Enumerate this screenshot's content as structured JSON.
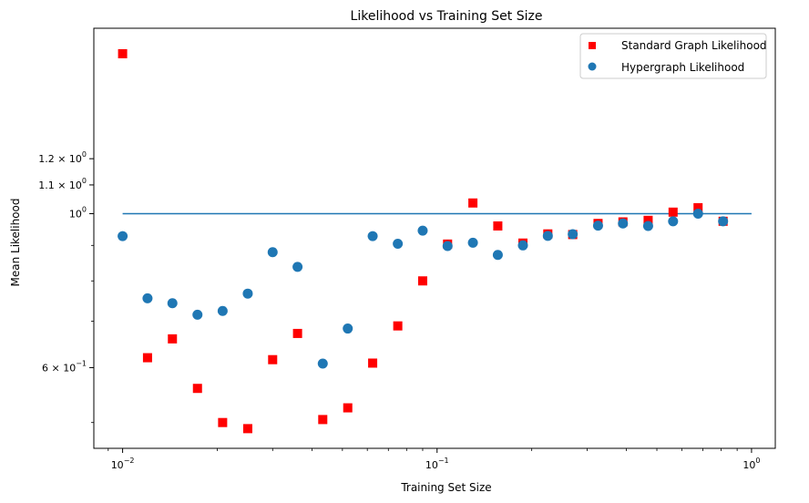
{
  "chart_data": {
    "type": "scatter",
    "title": "Likelihood vs Training Set Size",
    "xlabel": "Training Set Size",
    "ylabel": "Mean Likelihood",
    "xscale": "log",
    "yscale": "log",
    "xlim": [
      0.0081,
      1.19
    ],
    "ylim": [
      0.459,
      1.85
    ],
    "x_ticks": [
      {
        "value": 0.01,
        "base": "10",
        "exp": "−2"
      },
      {
        "value": 0.1,
        "base": "10",
        "exp": "−1"
      },
      {
        "value": 1.0,
        "base": "10",
        "exp": "0"
      }
    ],
    "y_ticks": [
      {
        "value": 0.6,
        "mant": "6",
        "base": "10",
        "exp": "−1"
      },
      {
        "value": 1.0,
        "mant": "",
        "base": "10",
        "exp": "0"
      },
      {
        "value": 1.1,
        "mant": "1.1",
        "base": "10",
        "exp": "0"
      },
      {
        "value": 1.2,
        "mant": "1.2",
        "base": "10",
        "exp": "0"
      }
    ],
    "hline": {
      "y": 1.0,
      "color": "#1f77b4"
    },
    "legend": "top-right",
    "x": [
      0.01,
      0.012,
      0.0144,
      0.0173,
      0.0208,
      0.025,
      0.03,
      0.036,
      0.0433,
      0.052,
      0.0624,
      0.075,
      0.09,
      0.108,
      0.13,
      0.156,
      0.1875,
      0.225,
      0.27,
      0.325,
      0.39,
      0.469,
      0.563,
      0.676,
      0.812
    ],
    "series": [
      {
        "name": "Standard Graph Likelihood",
        "marker": "square",
        "color": "#ff0000",
        "values": [
          1.7,
          0.62,
          0.66,
          0.56,
          0.5,
          0.49,
          0.616,
          0.672,
          0.505,
          0.525,
          0.609,
          0.689,
          0.8,
          0.904,
          1.036,
          0.96,
          0.907,
          0.935,
          0.933,
          0.968,
          0.973,
          0.978,
          1.005,
          1.02,
          0.975
        ]
      },
      {
        "name": "Hypergraph Likelihood",
        "marker": "circle",
        "color": "#1f77b4",
        "values": [
          0.928,
          0.755,
          0.743,
          0.715,
          0.724,
          0.767,
          0.88,
          0.838,
          0.608,
          0.683,
          0.928,
          0.905,
          0.945,
          0.898,
          0.908,
          0.872,
          0.9,
          0.929,
          0.934,
          0.961,
          0.968,
          0.96,
          0.975,
          1.0,
          0.975
        ]
      }
    ]
  }
}
